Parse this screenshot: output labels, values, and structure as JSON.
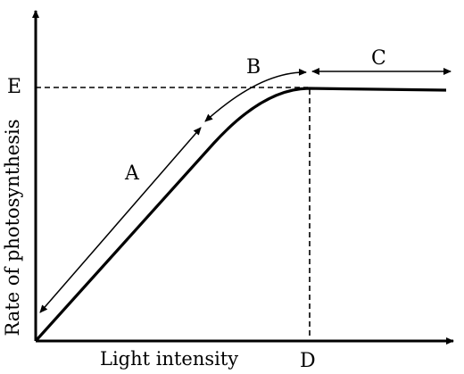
{
  "diagram": {
    "x_axis_label": "Light intensity",
    "y_axis_label": "Rate of photosynthesis",
    "point_labels": {
      "A": "A",
      "B": "B",
      "C": "C",
      "D": "D",
      "E": "E"
    }
  },
  "colors": {
    "ink": "#000000",
    "background": "#ffffff"
  }
}
